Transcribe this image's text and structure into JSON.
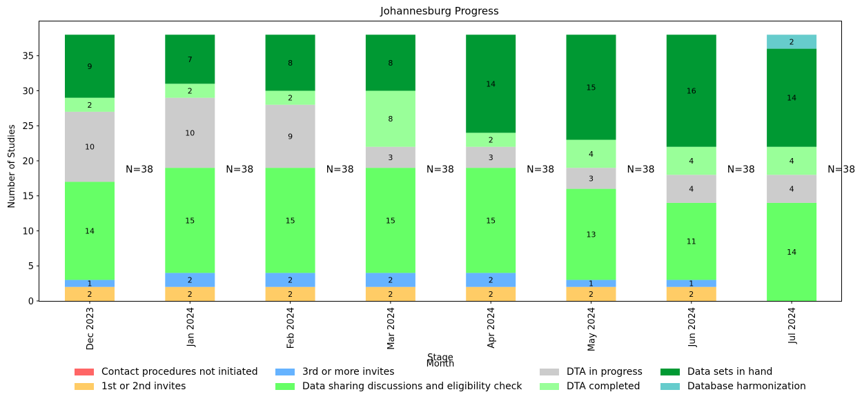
{
  "chart_data": {
    "type": "bar",
    "stacked": true,
    "title": "Johannesburg Progress",
    "xlabel": "Month",
    "ylabel": "Number of Studies",
    "legend_title": "Stage",
    "legend_position": "bottom",
    "ylim": [
      0,
      39.9
    ],
    "yticks": [
      0,
      5,
      10,
      15,
      20,
      25,
      30,
      35
    ],
    "grid": false,
    "categories": [
      "Dec 2023",
      "Jan 2024",
      "Feb 2024",
      "Mar 2024",
      "Apr 2024",
      "May 2024",
      "Jun 2024",
      "Jul 2024"
    ],
    "totals_label": [
      "N=38",
      "N=38",
      "N=38",
      "N=38",
      "N=38",
      "N=38",
      "N=38",
      "N=38"
    ],
    "series": [
      {
        "name": "Contact procedures not initiated",
        "color": "#ff6666",
        "values": [
          0,
          0,
          0,
          0,
          0,
          0,
          0,
          0
        ]
      },
      {
        "name": "1st or 2nd invites",
        "color": "#ffcc66",
        "values": [
          2,
          2,
          2,
          2,
          2,
          2,
          2,
          0
        ]
      },
      {
        "name": "3rd or more invites",
        "color": "#66b3ff",
        "values": [
          1,
          2,
          2,
          2,
          2,
          1,
          1,
          0
        ]
      },
      {
        "name": "Data sharing discussions and eligibility check",
        "color": "#66ff66",
        "values": [
          14,
          15,
          15,
          15,
          15,
          13,
          11,
          14
        ]
      },
      {
        "name": "DTA in progress",
        "color": "#cccccc",
        "values": [
          10,
          10,
          9,
          3,
          3,
          3,
          4,
          4
        ]
      },
      {
        "name": "DTA completed",
        "color": "#99ff99",
        "values": [
          2,
          2,
          2,
          8,
          2,
          4,
          4,
          4
        ]
      },
      {
        "name": "Data sets in hand",
        "color": "#009933",
        "values": [
          9,
          7,
          8,
          8,
          14,
          15,
          16,
          14
        ]
      },
      {
        "name": "Database harmonization",
        "color": "#66cccc",
        "values": [
          0,
          0,
          0,
          0,
          0,
          0,
          0,
          2
        ]
      }
    ]
  }
}
